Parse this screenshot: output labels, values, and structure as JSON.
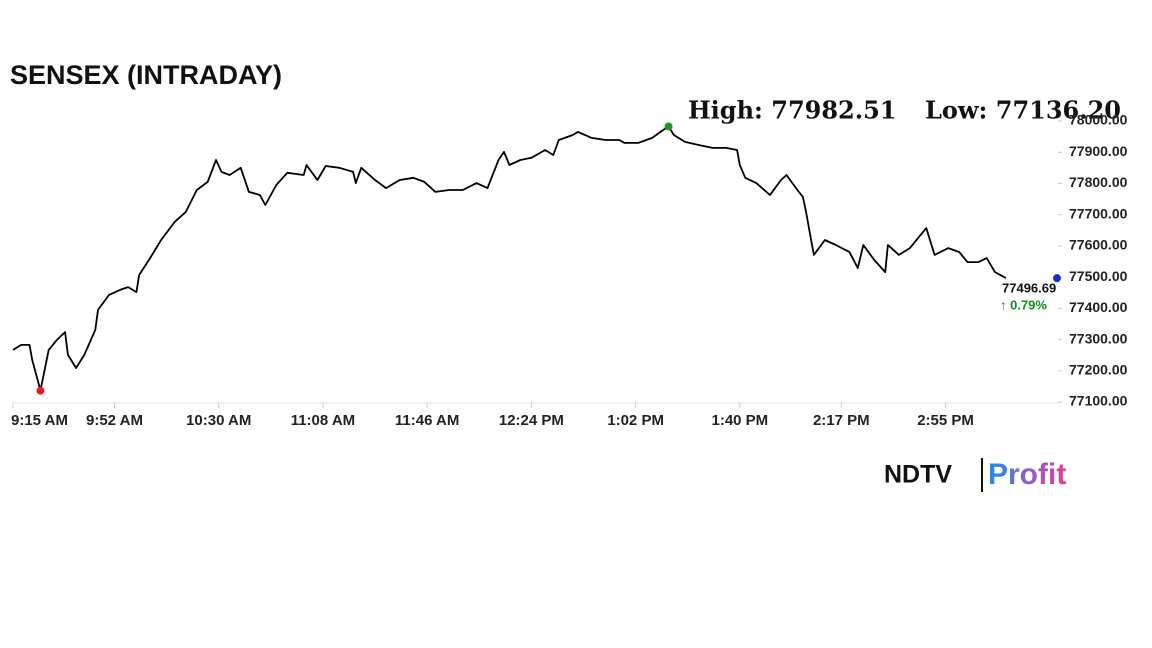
{
  "chart_data": {
    "type": "line",
    "title": "SENSEX (INTRADAY)",
    "high_text": "High: 77982.51",
    "low_text": "Low: 77136.20",
    "x": [
      555,
      558,
      561,
      562,
      564,
      565,
      568,
      571,
      574,
      575,
      578,
      581,
      585,
      586,
      590,
      594,
      597,
      600,
      601,
      605,
      609,
      614,
      618,
      622,
      626,
      629,
      631,
      634,
      638,
      641,
      645,
      647,
      651,
      655,
      661,
      662,
      666,
      669,
      674,
      679,
      680,
      682,
      687,
      691,
      696,
      701,
      705,
      709,
      714,
      719,
      724,
      728,
      732,
      734,
      736,
      740,
      744,
      749,
      752,
      754,
      759,
      761,
      766,
      771,
      776,
      778,
      783,
      788,
      792,
      794,
      796,
      800,
      805,
      810,
      815,
      819,
      820,
      822,
      826,
      831,
      835,
      837,
      841,
      843,
      844,
      846,
      847,
      851,
      855,
      860,
      863,
      865,
      869,
      873,
      874,
      878,
      882,
      885,
      888,
      891,
      896,
      900,
      903,
      907,
      910,
      913,
      917
    ],
    "values": [
      77267,
      77283,
      77283,
      77235,
      77170,
      77136.2,
      77267,
      77299,
      77324,
      77251,
      77209,
      77251,
      77331,
      77395,
      77443,
      77459,
      77468,
      77452,
      77507,
      77561,
      77619,
      77677,
      77709,
      77779,
      77805,
      77875,
      77837,
      77827,
      77850,
      77773,
      77763,
      77731,
      77795,
      77834,
      77827,
      77859,
      77811,
      77856,
      77850,
      77837,
      77801,
      77850,
      77811,
      77785,
      77811,
      77818,
      77805,
      77773,
      77779,
      77779,
      77801,
      77785,
      77875,
      77901,
      77859,
      77875,
      77882,
      77907,
      77891,
      77939,
      77955,
      77965,
      77946,
      77939,
      77939,
      77930,
      77930,
      77946,
      77971,
      77982.51,
      77955,
      77933,
      77923,
      77914,
      77914,
      77907,
      77859,
      77818,
      77801,
      77763,
      77811,
      77827,
      77779,
      77757,
      77715,
      77619,
      77571,
      77619,
      77603,
      77580,
      77529,
      77603,
      77555,
      77516,
      77603,
      77571,
      77593,
      77625,
      77657,
      77571,
      77593,
      77580,
      77548,
      77548,
      77561,
      77516,
      77496.69
    ],
    "color": "#000000",
    "last_value": 77496.69,
    "change_text": "↑ 0.79%",
    "xlim": [
      555,
      936
    ],
    "xticks": [
      {
        "value": 555,
        "label": "9:15 AM"
      },
      {
        "value": 592,
        "label": "9:52 AM"
      },
      {
        "value": 630,
        "label": "10:30 AM"
      },
      {
        "value": 668,
        "label": "11:08 AM"
      },
      {
        "value": 706,
        "label": "11:46 AM"
      },
      {
        "value": 744,
        "label": "12:24 PM"
      },
      {
        "value": 782,
        "label": "1:02 PM"
      },
      {
        "value": 820,
        "label": "1:40 PM"
      },
      {
        "value": 857,
        "label": "2:17 PM"
      },
      {
        "value": 895,
        "label": "2:55 PM"
      }
    ],
    "ylim": [
      77100,
      78000
    ],
    "yticks": [
      {
        "value": 77100,
        "label": "77100.00"
      },
      {
        "value": 77200,
        "label": "77200.00"
      },
      {
        "value": 77300,
        "label": "77300.00"
      },
      {
        "value": 77400,
        "label": "77400.00"
      },
      {
        "value": 77500,
        "label": "77500.00"
      },
      {
        "value": 77600,
        "label": "77600.00"
      },
      {
        "value": 77700,
        "label": "77700.00"
      },
      {
        "value": 77800,
        "label": "77800.00"
      },
      {
        "value": 77900,
        "label": "77900.00"
      },
      {
        "value": 78000,
        "label": "78000.00"
      }
    ],
    "logo": {
      "left": "NDTV",
      "right": "Profit"
    }
  }
}
